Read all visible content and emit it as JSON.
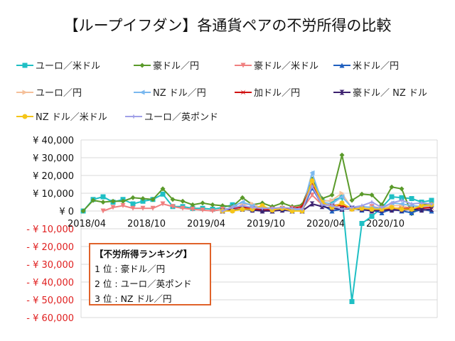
{
  "title": "【ループイフダン】各通貨ペアの不労所得の比較",
  "ranking": {
    "heading": "【不労所得ランキング】",
    "items": [
      "1 位 : 豪ドル／円",
      "2 位 : ユーロ／英ポンド",
      "3 位 :  NZ ドル／円"
    ]
  },
  "chart_data": {
    "type": "line",
    "title": "【ループイフダン】各通貨ペアの不労所得の比較",
    "ylim": [
      -60000,
      40000
    ],
    "yticks": [
      40000,
      30000,
      20000,
      10000,
      0,
      -10000,
      -20000,
      -30000,
      -40000,
      -50000,
      -60000
    ],
    "ytick_labels": [
      "¥ 40,000",
      "¥ 30,000",
      "¥ 20,000",
      "¥ 10,000",
      "¥ 0",
      "- ¥ 10,000",
      "- ¥ 20,000",
      "- ¥ 30,000",
      "- ¥ 40,000",
      "- ¥ 50,000",
      "- ¥ 60,000"
    ],
    "negative_tick_color": "#e02020",
    "x": [
      "2018/04",
      "2018/05",
      "2018/06",
      "2018/07",
      "2018/08",
      "2018/09",
      "2018/10",
      "2018/11",
      "2018/12",
      "2019/01",
      "2019/02",
      "2019/03",
      "2019/04",
      "2019/05",
      "2019/06",
      "2019/07",
      "2019/08",
      "2019/09",
      "2019/10",
      "2019/11",
      "2019/12",
      "2020/01",
      "2020/02",
      "2020/03",
      "2020/04",
      "2020/05",
      "2020/06",
      "2020/07",
      "2020/08",
      "2020/09",
      "2020/10",
      "2020/11",
      "2020/12",
      "2021/01",
      "2021/02",
      "2021/03"
    ],
    "xtick_labels": [
      "2018/04",
      "2018/10",
      "2019/04",
      "2019/10",
      "2020/04",
      "2020/10"
    ],
    "grid": true,
    "legend": "top",
    "series": [
      {
        "name": "ユーロ／米ドル",
        "color": "#1fbfc4",
        "marker": "square",
        "values": [
          0,
          6500,
          8000,
          5000,
          6500,
          4000,
          5500,
          6500,
          9500,
          2500,
          2500,
          1500,
          1500,
          1000,
          2000,
          3500,
          1500,
          1500,
          2000,
          1500,
          1000,
          1500,
          1000,
          15000,
          6000,
          5500,
          8000,
          -51000,
          -7000,
          -3000,
          2000,
          8000,
          7500,
          7000,
          5000,
          6000
        ]
      },
      {
        "name": "豪ドル／円",
        "color": "#5a9a2a",
        "marker": "diamond",
        "values": [
          0,
          6000,
          5000,
          5500,
          5500,
          7500,
          7000,
          6500,
          12500,
          6500,
          5500,
          3500,
          4500,
          3500,
          3000,
          2500,
          7500,
          3500,
          4500,
          2500,
          4500,
          2500,
          3500,
          18000,
          7000,
          9000,
          31500,
          6000,
          9500,
          9000,
          3500,
          13500,
          12500,
          -1500,
          3500,
          4000
        ]
      },
      {
        "name": "豪ドル／米ドル",
        "color": "#f08080",
        "marker": "tri-down",
        "values": [
          null,
          null,
          0,
          2000,
          3000,
          1500,
          1500,
          1500,
          4000,
          2500,
          1500,
          1000,
          500,
          0,
          1000,
          1500,
          2500,
          1500,
          1000,
          1000,
          1500,
          1500,
          1000,
          9000,
          3500,
          3000,
          4000,
          1500,
          1500,
          2500,
          1500,
          1500,
          500,
          1000,
          2000,
          2500
        ]
      },
      {
        "name": "米ドル／円",
        "color": "#1f5fbf",
        "marker": "tri-up",
        "values": [
          null,
          null,
          null,
          null,
          null,
          null,
          null,
          null,
          null,
          null,
          null,
          null,
          null,
          null,
          0,
          1500,
          3000,
          1000,
          500,
          0,
          1000,
          0,
          0,
          13000,
          3500,
          0,
          1000,
          1500,
          500,
          500,
          -1000,
          1000,
          0,
          -1000,
          1000,
          0
        ]
      },
      {
        "name": "ユーロ／円",
        "color": "#f5c09a",
        "marker": "tri-right",
        "values": [
          null,
          null,
          null,
          null,
          null,
          null,
          null,
          null,
          null,
          null,
          null,
          null,
          null,
          null,
          0,
          1000,
          3500,
          4000,
          1500,
          500,
          1000,
          500,
          0,
          16000,
          5500,
          6000,
          10000,
          1500,
          1500,
          2000,
          1000,
          3000,
          3000,
          1500,
          2500,
          3000
        ]
      },
      {
        "name": "NZ ドル／円",
        "color": "#7ab8ef",
        "marker": "tri-left",
        "values": [
          null,
          null,
          null,
          null,
          null,
          null,
          null,
          null,
          null,
          null,
          null,
          null,
          null,
          null,
          0,
          2500,
          5000,
          3000,
          1000,
          1000,
          1500,
          500,
          500,
          21500,
          5000,
          4000,
          8000,
          2000,
          2500,
          2000,
          1500,
          4500,
          4000,
          3000,
          2500,
          3500
        ]
      },
      {
        "name": "加ドル／円",
        "color": "#d01010",
        "marker": "cross",
        "values": [
          null,
          null,
          null,
          null,
          null,
          null,
          null,
          null,
          null,
          null,
          null,
          null,
          null,
          null,
          0,
          1500,
          2000,
          1500,
          500,
          1000,
          1500,
          1500,
          2500,
          16000,
          4000,
          3000,
          3000,
          1000,
          1500,
          500,
          500,
          1500,
          1500,
          1500,
          1500,
          2000
        ]
      },
      {
        "name": "豪ドル／ NZ ドル",
        "color": "#3b1f6e",
        "marker": "bowtie",
        "values": [
          null,
          null,
          null,
          null,
          null,
          null,
          null,
          null,
          null,
          null,
          null,
          null,
          null,
          null,
          0,
          500,
          1000,
          500,
          0,
          0,
          500,
          0,
          0,
          4000,
          2500,
          1500,
          1000,
          1500,
          1000,
          0,
          500,
          500,
          500,
          1000,
          500,
          1000
        ]
      },
      {
        "name": "NZ ドル／米ドル",
        "color": "#f5c518",
        "marker": "circle",
        "values": [
          null,
          null,
          null,
          null,
          null,
          null,
          null,
          null,
          null,
          null,
          null,
          null,
          null,
          null,
          0,
          0,
          1000,
          1000,
          3000,
          500,
          1500,
          0,
          0,
          17000,
          5000,
          2000,
          4500,
          1000,
          1500,
          1000,
          1000,
          2000,
          1000,
          1000,
          3000,
          3500
        ]
      },
      {
        "name": "ユーロ／英ポンド",
        "color": "#a0a0e8",
        "marker": "star",
        "values": [
          null,
          null,
          null,
          null,
          null,
          null,
          null,
          null,
          null,
          null,
          null,
          null,
          null,
          null,
          0,
          2000,
          3000,
          2000,
          1500,
          1500,
          2000,
          1500,
          1000,
          14000,
          3500,
          3000,
          1000,
          2000,
          3000,
          5000,
          2000,
          4500,
          6000,
          4000,
          4500,
          4000
        ]
      }
    ]
  }
}
